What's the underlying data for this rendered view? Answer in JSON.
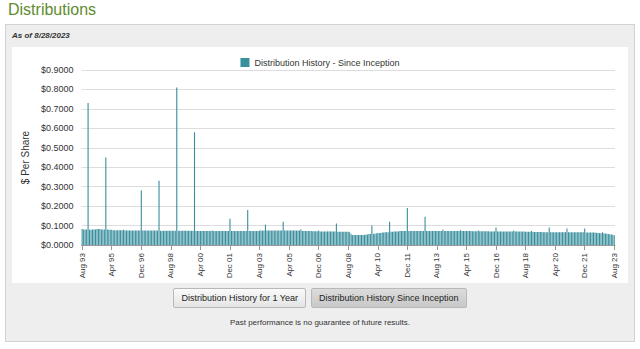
{
  "page": {
    "heading": "Distributions",
    "as_of": "As of 8/28/2023",
    "buttons": [
      "Distribution History for 1 Year",
      "Distribution History Since Inception"
    ],
    "footnote": "Past performance is no guarantee of future results."
  },
  "chart_data": {
    "type": "bar",
    "ylabel": "$ Per Share",
    "grid": true,
    "legend": "top",
    "ylim": [
      0,
      0.9
    ],
    "yticks": [
      {
        "value": 0,
        "label": "$0.0000"
      },
      {
        "value": 0.1,
        "label": "$0.1000"
      },
      {
        "value": 0.2,
        "label": "$0.2000"
      },
      {
        "value": 0.3,
        "label": "$0.3000"
      },
      {
        "value": 0.4,
        "label": "$0.4000"
      },
      {
        "value": 0.5,
        "label": "$0.5000"
      },
      {
        "value": 0.6,
        "label": "$0.6000"
      },
      {
        "value": 0.7,
        "label": "$0.7000"
      },
      {
        "value": 0.8,
        "label": "$0.8000"
      },
      {
        "value": 0.9,
        "label": "$0.9000"
      }
    ],
    "categories": [
      "Aug 93",
      null,
      null,
      null,
      null,
      null,
      null,
      null,
      null,
      null,
      null,
      null,
      null,
      null,
      null,
      null,
      null,
      null,
      null,
      null,
      "Apr 95",
      null,
      null,
      null,
      null,
      null,
      null,
      null,
      null,
      null,
      null,
      null,
      null,
      null,
      null,
      null,
      null,
      null,
      null,
      null,
      "Dec 96",
      null,
      null,
      null,
      null,
      null,
      null,
      null,
      null,
      null,
      null,
      null,
      null,
      null,
      null,
      null,
      null,
      null,
      null,
      null,
      "Aug 98",
      null,
      null,
      null,
      null,
      null,
      null,
      null,
      null,
      null,
      null,
      null,
      null,
      null,
      null,
      null,
      null,
      null,
      null,
      null,
      "Apr 00",
      null,
      null,
      null,
      null,
      null,
      null,
      null,
      null,
      null,
      null,
      null,
      null,
      null,
      null,
      null,
      null,
      null,
      null,
      null,
      "Dec 01",
      null,
      null,
      null,
      null,
      null,
      null,
      null,
      null,
      null,
      null,
      null,
      null,
      null,
      null,
      null,
      null,
      null,
      null,
      null,
      "Aug 03",
      null,
      null,
      null,
      null,
      null,
      null,
      null,
      null,
      null,
      null,
      null,
      null,
      null,
      null,
      null,
      null,
      null,
      null,
      null,
      "Apr 05",
      null,
      null,
      null,
      null,
      null,
      null,
      null,
      null,
      null,
      null,
      null,
      null,
      null,
      null,
      null,
      null,
      null,
      null,
      null,
      "Dec 06",
      null,
      null,
      null,
      null,
      null,
      null,
      null,
      null,
      null,
      null,
      null,
      null,
      null,
      null,
      null,
      null,
      null,
      null,
      null,
      "Aug 08",
      null,
      null,
      null,
      null,
      null,
      null,
      null,
      null,
      null,
      null,
      null,
      null,
      null,
      null,
      null,
      null,
      null,
      null,
      null,
      "Apr 10",
      null,
      null,
      null,
      null,
      null,
      null,
      null,
      null,
      null,
      null,
      null,
      null,
      null,
      null,
      null,
      null,
      null,
      null,
      null,
      "Dec 11",
      null,
      null,
      null,
      null,
      null,
      null,
      null,
      null,
      null,
      null,
      null,
      null,
      null,
      null,
      null,
      null,
      null,
      null,
      null,
      "Aug 13",
      null,
      null,
      null,
      null,
      null,
      null,
      null,
      null,
      null,
      null,
      null,
      null,
      null,
      null,
      null,
      null,
      null,
      null,
      null,
      "Apr 15",
      null,
      null,
      null,
      null,
      null,
      null,
      null,
      null,
      null,
      null,
      null,
      null,
      null,
      null,
      null,
      null,
      null,
      null,
      null,
      "Dec 16",
      null,
      null,
      null,
      null,
      null,
      null,
      null,
      null,
      null,
      null,
      null,
      null,
      null,
      null,
      null,
      null,
      null,
      null,
      null,
      "Aug 18",
      null,
      null,
      null,
      null,
      null,
      null,
      null,
      null,
      null,
      null,
      null,
      null,
      null,
      null,
      null,
      null,
      null,
      null,
      null,
      "Apr 20",
      null,
      null,
      null,
      null,
      null,
      null,
      null,
      null,
      null,
      null,
      null,
      null,
      null,
      null,
      null,
      null,
      null,
      null,
      null,
      "Dec 21",
      null,
      null,
      null,
      null,
      null,
      null,
      null,
      null,
      null,
      null,
      null,
      null,
      null,
      null,
      null,
      null,
      null,
      null,
      null,
      "Aug 23"
    ],
    "series": [
      {
        "name": "Distribution History - Since Inception",
        "color": "#3a8f9d",
        "values": [
          0.082,
          0.08,
          0.08,
          0.08,
          0.73,
          0.078,
          0.078,
          0.08,
          0.08,
          0.08,
          0.082,
          0.082,
          0.082,
          0.08,
          0.08,
          0.08,
          0.45,
          0.08,
          0.078,
          0.078,
          0.078,
          0.076,
          0.076,
          0.076,
          0.076,
          0.076,
          0.076,
          0.076,
          0.078,
          0.075,
          0.075,
          0.075,
          0.075,
          0.075,
          0.075,
          0.075,
          0.075,
          0.075,
          0.075,
          0.075,
          0.28,
          0.074,
          0.074,
          0.074,
          0.074,
          0.074,
          0.074,
          0.074,
          0.074,
          0.074,
          0.074,
          0.074,
          0.33,
          0.073,
          0.073,
          0.073,
          0.073,
          0.073,
          0.073,
          0.073,
          0.073,
          0.073,
          0.073,
          0.073,
          0.81,
          0.073,
          0.073,
          0.073,
          0.073,
          0.073,
          0.073,
          0.073,
          0.073,
          0.073,
          0.073,
          0.073,
          0.58,
          0.072,
          0.072,
          0.072,
          0.072,
          0.072,
          0.072,
          0.072,
          0.072,
          0.072,
          0.072,
          0.072,
          0.075,
          0.072,
          0.072,
          0.072,
          0.072,
          0.072,
          0.072,
          0.072,
          0.072,
          0.072,
          0.072,
          0.072,
          0.135,
          0.072,
          0.072,
          0.072,
          0.072,
          0.072,
          0.072,
          0.072,
          0.072,
          0.072,
          0.072,
          0.072,
          0.18,
          0.072,
          0.072,
          0.072,
          0.072,
          0.072,
          0.072,
          0.072,
          0.074,
          0.074,
          0.074,
          0.074,
          0.105,
          0.074,
          0.074,
          0.074,
          0.074,
          0.074,
          0.074,
          0.074,
          0.075,
          0.075,
          0.075,
          0.075,
          0.12,
          0.075,
          0.075,
          0.075,
          0.075,
          0.075,
          0.075,
          0.075,
          0.074,
          0.074,
          0.074,
          0.074,
          0.08,
          0.072,
          0.072,
          0.072,
          0.072,
          0.072,
          0.072,
          0.072,
          0.071,
          0.071,
          0.071,
          0.071,
          0.075,
          0.07,
          0.07,
          0.07,
          0.07,
          0.07,
          0.07,
          0.07,
          0.07,
          0.07,
          0.07,
          0.07,
          0.11,
          0.068,
          0.068,
          0.068,
          0.068,
          0.068,
          0.068,
          0.068,
          0.068,
          0.066,
          0.055,
          0.052,
          0.052,
          0.052,
          0.052,
          0.052,
          0.052,
          0.052,
          0.052,
          0.052,
          0.054,
          0.054,
          0.056,
          0.056,
          0.1,
          0.058,
          0.058,
          0.06,
          0.06,
          0.062,
          0.062,
          0.064,
          0.064,
          0.066,
          0.066,
          0.066,
          0.12,
          0.068,
          0.068,
          0.07,
          0.07,
          0.07,
          0.07,
          0.072,
          0.072,
          0.072,
          0.072,
          0.072,
          0.19,
          0.072,
          0.072,
          0.072,
          0.072,
          0.072,
          0.072,
          0.072,
          0.072,
          0.072,
          0.072,
          0.072,
          0.145,
          0.072,
          0.072,
          0.072,
          0.072,
          0.072,
          0.072,
          0.072,
          0.072,
          0.072,
          0.072,
          0.072,
          0.078,
          0.072,
          0.072,
          0.072,
          0.072,
          0.072,
          0.072,
          0.072,
          0.072,
          0.072,
          0.072,
          0.072,
          0.076,
          0.072,
          0.072,
          0.072,
          0.072,
          0.072,
          0.072,
          0.072,
          0.071,
          0.071,
          0.071,
          0.071,
          0.075,
          0.071,
          0.071,
          0.071,
          0.071,
          0.071,
          0.071,
          0.071,
          0.07,
          0.07,
          0.07,
          0.07,
          0.09,
          0.07,
          0.07,
          0.07,
          0.07,
          0.07,
          0.07,
          0.07,
          0.069,
          0.069,
          0.069,
          0.069,
          0.074,
          0.069,
          0.069,
          0.069,
          0.069,
          0.069,
          0.069,
          0.069,
          0.068,
          0.068,
          0.068,
          0.068,
          0.072,
          0.067,
          0.067,
          0.067,
          0.067,
          0.067,
          0.067,
          0.067,
          0.066,
          0.066,
          0.066,
          0.066,
          0.09,
          0.066,
          0.066,
          0.066,
          0.066,
          0.066,
          0.066,
          0.066,
          0.066,
          0.066,
          0.066,
          0.066,
          0.085,
          0.066,
          0.066,
          0.066,
          0.066,
          0.066,
          0.066,
          0.066,
          0.065,
          0.065,
          0.065,
          0.065,
          0.085,
          0.064,
          0.064,
          0.064,
          0.064,
          0.064,
          0.064,
          0.064,
          0.062,
          0.062,
          0.061,
          0.061,
          0.065,
          0.06,
          0.059,
          0.058,
          0.057,
          0.055,
          0.054,
          0.053,
          0.05
        ]
      }
    ]
  }
}
